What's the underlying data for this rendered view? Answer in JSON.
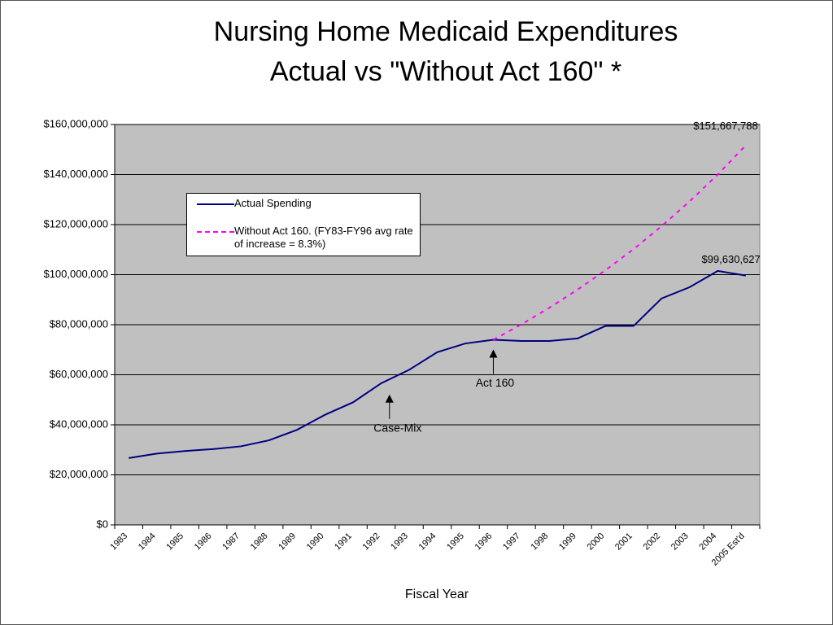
{
  "chart_data": {
    "type": "line",
    "title": [
      "Nursing Home Medicaid Expenditures",
      "Actual vs \"Without Act 160\" *"
    ],
    "x_label": "Fiscal Year",
    "categories": [
      "1983",
      "1984",
      "1985",
      "1986",
      "1987",
      "1988",
      "1989",
      "1990",
      "1991",
      "1992",
      "1993",
      "1994",
      "1995",
      "1996",
      "1997",
      "1998",
      "1999",
      "2000",
      "2001",
      "2002",
      "2003",
      "2004",
      "2005 Est'd"
    ],
    "series": [
      {
        "name": "Actual Spending",
        "color": "#000080",
        "dash": false,
        "values": [
          26700000,
          28500000,
          29500000,
          30300000,
          31400000,
          33800000,
          38000000,
          44000000,
          49000000,
          56600000,
          62000000,
          69000000,
          72500000,
          74000000,
          73500000,
          73500000,
          74500000,
          79500000,
          79500000,
          90500000,
          95000000,
          101500000,
          99630627
        ]
      },
      {
        "name": "Without Act 160. (FY83-FY96 avg rate of increase = 8.3%)",
        "color": "#ff00ff",
        "dash": true,
        "values": [
          null,
          null,
          null,
          null,
          null,
          null,
          null,
          null,
          null,
          null,
          null,
          null,
          null,
          74000000,
          80100000,
          86800000,
          94000000,
          101800000,
          110200000,
          119400000,
          129300000,
          140000000,
          151667788
        ]
      }
    ],
    "ylim": [
      0,
      160000000
    ],
    "yticks": [
      {
        "value": 0,
        "label": "$0"
      },
      {
        "value": 20000000,
        "label": "$20,000,000"
      },
      {
        "value": 40000000,
        "label": "$40,000,000"
      },
      {
        "value": 60000000,
        "label": "$60,000,000"
      },
      {
        "value": 80000000,
        "label": "$80,000,000"
      },
      {
        "value": 100000000,
        "label": "$100,000,000"
      },
      {
        "value": 120000000,
        "label": "$120,000,000"
      },
      {
        "value": 140000000,
        "label": "$140,000,000"
      },
      {
        "value": 160000000,
        "label": "$160,000,000"
      }
    ],
    "grid": true,
    "plot_background": "#c0c0c0",
    "annotations": [
      {
        "text": "$151,667,788",
        "category": 22,
        "value": 151667788
      },
      {
        "text": "$99,630,627",
        "category": 22,
        "value": 99630627
      },
      {
        "text": "Case-Mix",
        "category": 9.5,
        "value": 56000000
      },
      {
        "text": "Act 160",
        "category": 13,
        "value": 74000000
      }
    ]
  }
}
